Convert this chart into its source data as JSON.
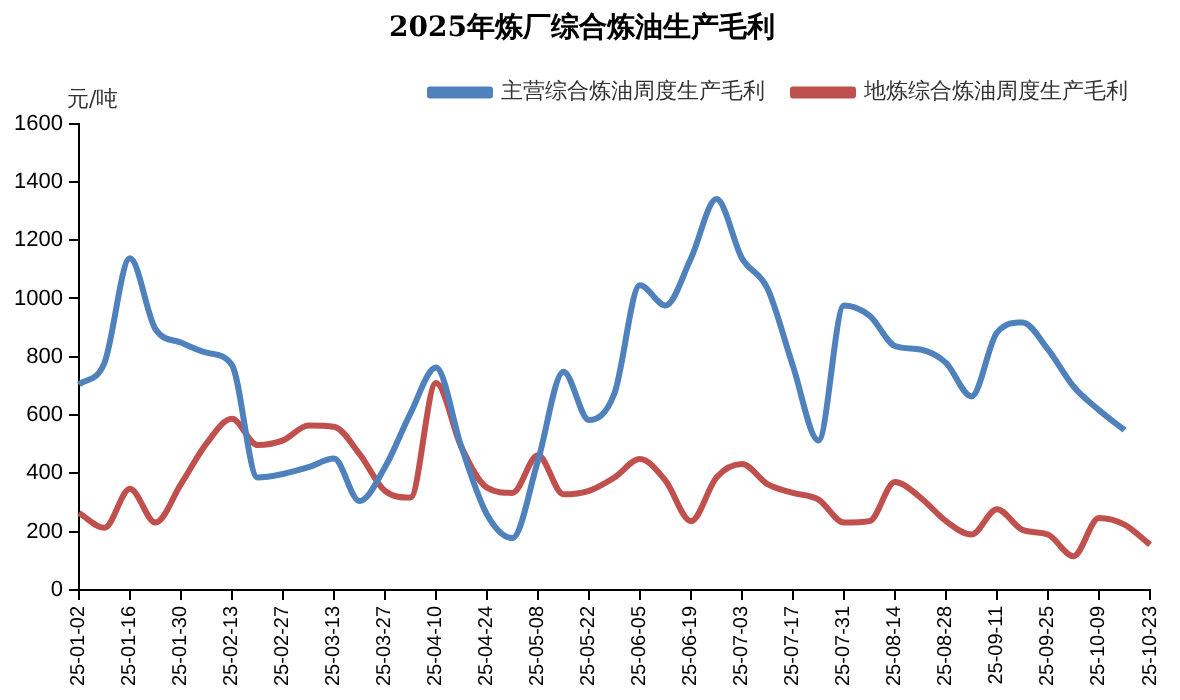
{
  "chart_data": {
    "type": "line",
    "title": "2025年炼厂综合炼油生产毛利",
    "ylabel": "元/吨",
    "categories": [
      "25-01-02",
      null,
      "25-01-16",
      null,
      "25-01-30",
      null,
      "25-02-13",
      null,
      "25-02-27",
      null,
      "25-03-13",
      null,
      "25-03-27",
      null,
      "25-04-10",
      null,
      "25-04-24",
      null,
      "25-05-08",
      null,
      "25-05-22",
      null,
      "25-06-05",
      null,
      "25-06-19",
      null,
      "25-07-03",
      null,
      "25-07-17",
      null,
      "25-07-31",
      null,
      "25-08-14",
      null,
      "25-08-28",
      null,
      "25-09-11",
      null,
      "25-09-25",
      null,
      "25-10-09",
      null,
      "25-10-23"
    ],
    "series": [
      {
        "name": "主营综合炼油周度生产毛利",
        "color": "#4f81bd",
        "values": [
          705,
          779,
          1138,
          895,
          849,
          814,
          772,
          386,
          398,
          421,
          451,
          305,
          421,
          606,
          763,
          490,
          259,
          178,
          444,
          749,
          583,
          675,
          1045,
          976,
          1138,
          1341,
          1138,
          1034,
          768,
          513,
          976,
          941,
          837,
          825,
          779,
          664,
          883,
          918,
          825,
          698,
          617,
          548,
          null
        ]
      },
      {
        "name": "地炼综合炼油周度生产毛利",
        "color": "#c0504d",
        "values": [
          264,
          213,
          347,
          231,
          363,
          502,
          587,
          497,
          513,
          564,
          560,
          467,
          340,
          317,
          710,
          490,
          351,
          333,
          462,
          328,
          340,
          386,
          449,
          375,
          236,
          386,
          432,
          363,
          333,
          310,
          231,
          236,
          370,
          317,
          236,
          190,
          277,
          206,
          190,
          116,
          247,
          224,
          155
        ]
      }
    ],
    "ylim": [
      0,
      1600
    ],
    "yticks": [
      0,
      200,
      400,
      600,
      800,
      1000,
      1200,
      1400,
      1600
    ],
    "grid": false,
    "legend": "top",
    "marker": "none",
    "line_style": "solid"
  }
}
